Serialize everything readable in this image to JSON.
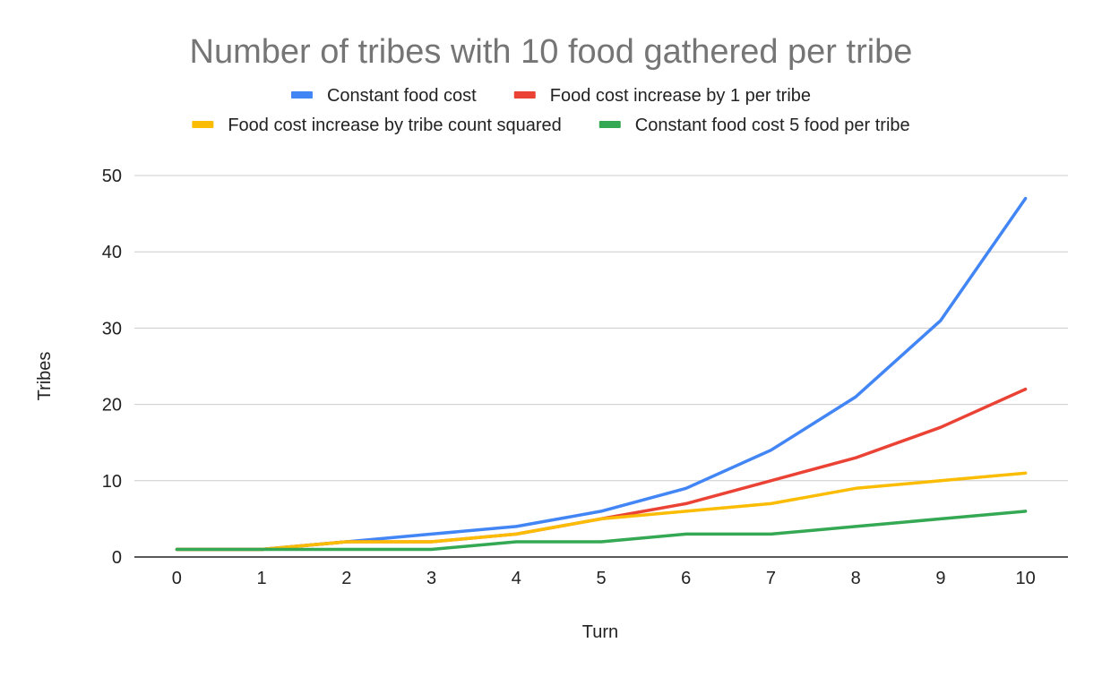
{
  "chart_data": {
    "type": "line",
    "title": "Number of tribes with 10 food gathered per tribe",
    "xlabel": "Turn",
    "ylabel": "Tribes",
    "x": [
      0,
      1,
      2,
      3,
      4,
      5,
      6,
      7,
      8,
      9,
      10
    ],
    "x_tick_labels": [
      "0",
      "1",
      "2",
      "3",
      "4",
      "5",
      "6",
      "7",
      "8",
      "9",
      "10"
    ],
    "y_tick_labels": [
      "0",
      "10",
      "20",
      "30",
      "40",
      "50"
    ],
    "ylim": [
      0,
      50
    ],
    "y_ticks": [
      0,
      10,
      20,
      30,
      40,
      50
    ],
    "grid": true,
    "legend_position": "top",
    "series": [
      {
        "name": "Constant food cost",
        "color": "#4285f4",
        "values": [
          1,
          1,
          2,
          3,
          4,
          6,
          9,
          14,
          21,
          31,
          47
        ]
      },
      {
        "name": "Food cost increase by 1 per tribe",
        "color": "#ea4335",
        "values": [
          1,
          1,
          2,
          2,
          3,
          5,
          7,
          10,
          13,
          17,
          22
        ]
      },
      {
        "name": "Food cost increase by tribe count squared",
        "color": "#fbbc04",
        "values": [
          1,
          1,
          2,
          2,
          3,
          5,
          6,
          7,
          9,
          10,
          11
        ]
      },
      {
        "name": "Constant food cost 5 food per tribe",
        "color": "#34a853",
        "values": [
          1,
          1,
          1,
          1,
          2,
          2,
          3,
          3,
          4,
          5,
          6
        ]
      }
    ]
  }
}
